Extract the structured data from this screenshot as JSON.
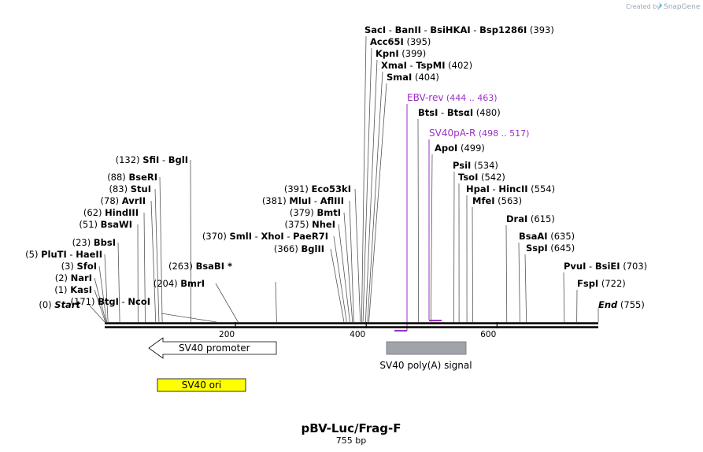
{
  "watermark": {
    "text": "Created by",
    "brand": "SnapGene",
    "color": "#9aa7b3"
  },
  "title": "pBV-Luc/Frag-F",
  "subtitle": "755 bp",
  "colors": {
    "primer": "#9b2fc6",
    "polyA": "#a0a4aa",
    "ori": "#ffff00",
    "line": "#000000"
  },
  "ruler": {
    "ticks": [
      {
        "pos": 200,
        "label": "200"
      },
      {
        "pos": 400,
        "label": "400"
      },
      {
        "pos": 600,
        "label": "600"
      }
    ]
  },
  "start_label": {
    "pos": "(0)",
    "name": "Start"
  },
  "end_label": {
    "name": "End",
    "pos": "(755)"
  },
  "left_sites": [
    {
      "pos": "(1)",
      "enzymes": [
        "KasI"
      ]
    },
    {
      "pos": "(2)",
      "enzymes": [
        "NarI"
      ]
    },
    {
      "pos": "(3)",
      "enzymes": [
        "SfoI"
      ]
    },
    {
      "pos": "(5)",
      "enzymes": [
        "PluTI",
        "HaeII"
      ]
    },
    {
      "pos": "(23)",
      "enzymes": [
        "BbsI"
      ]
    },
    {
      "pos": "(51)",
      "enzymes": [
        "BsaWI"
      ]
    },
    {
      "pos": "(62)",
      "enzymes": [
        "HindIII"
      ]
    },
    {
      "pos": "(78)",
      "enzymes": [
        "AvrII"
      ]
    },
    {
      "pos": "(83)",
      "enzymes": [
        "StuI"
      ]
    },
    {
      "pos": "(88)",
      "enzymes": [
        "BseRI"
      ]
    },
    {
      "pos": "(132)",
      "enzymes": [
        "SfiI",
        "BglI"
      ]
    },
    {
      "pos": "(171)",
      "enzymes": [
        "BtgI",
        "NcoI"
      ]
    },
    {
      "pos": "(204)",
      "enzymes": [
        "BmrI"
      ]
    },
    {
      "pos": "(263)",
      "enzymes": [
        "BsaBI *"
      ]
    },
    {
      "pos": "(366)",
      "enzymes": [
        "BglII"
      ]
    },
    {
      "pos": "(370)",
      "enzymes": [
        "SmlI",
        "XhoI",
        "PaeR7I"
      ]
    },
    {
      "pos": "(375)",
      "enzymes": [
        "NheI"
      ]
    },
    {
      "pos": "(379)",
      "enzymes": [
        "BmtI"
      ]
    },
    {
      "pos": "(381)",
      "enzymes": [
        "MluI",
        "AflIII"
      ]
    },
    {
      "pos": "(391)",
      "enzymes": [
        "Eco53kI"
      ]
    }
  ],
  "right_sites": [
    {
      "enzymes": [
        "SacI",
        "BanII",
        "BsiHKAI",
        "Bsp1286I"
      ],
      "pos": "(393)"
    },
    {
      "enzymes": [
        "Acc65I"
      ],
      "pos": "(395)"
    },
    {
      "enzymes": [
        "KpnI"
      ],
      "pos": "(399)"
    },
    {
      "enzymes": [
        "XmaI",
        "TspMI"
      ],
      "pos": "(402)"
    },
    {
      "enzymes": [
        "SmaI"
      ],
      "pos": "(404)"
    },
    {
      "enzymes": [
        "BtsI",
        "BtsαI"
      ],
      "pos": "(480)"
    },
    {
      "enzymes": [
        "ApoI"
      ],
      "pos": "(499)"
    },
    {
      "enzymes": [
        "PsiI"
      ],
      "pos": "(534)"
    },
    {
      "enzymes": [
        "TsoI"
      ],
      "pos": "(542)"
    },
    {
      "enzymes": [
        "HpaI",
        "HincII"
      ],
      "pos": "(554)"
    },
    {
      "enzymes": [
        "MfeI"
      ],
      "pos": "(563)"
    },
    {
      "enzymes": [
        "DraI"
      ],
      "pos": "(615)"
    },
    {
      "enzymes": [
        "BsaAI"
      ],
      "pos": "(635)"
    },
    {
      "enzymes": [
        "SspI"
      ],
      "pos": "(645)"
    },
    {
      "enzymes": [
        "PvuI",
        "BsiEI"
      ],
      "pos": "(703)"
    },
    {
      "enzymes": [
        "FspI"
      ],
      "pos": "(722)"
    }
  ],
  "primers": [
    {
      "name": "EBV-rev",
      "range": "(444 .. 463)"
    },
    {
      "name": "SV40pA-R",
      "range": "(498 .. 517)"
    }
  ],
  "features": {
    "promoter": "SV40 promoter",
    "polyA": "SV40 poly(A) signal",
    "ori": "SV40 ori"
  }
}
